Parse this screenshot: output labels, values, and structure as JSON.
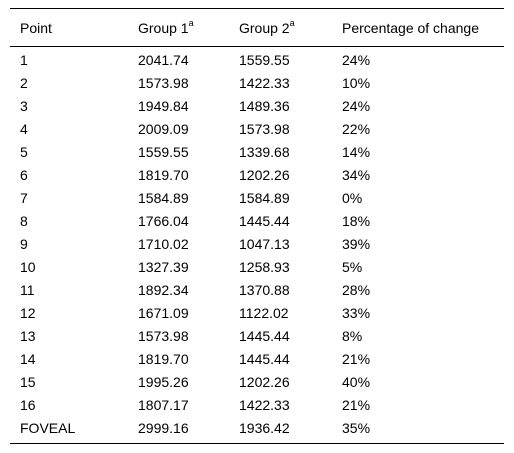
{
  "table": {
    "headers": [
      {
        "text": "Point",
        "sup": ""
      },
      {
        "text": "Group 1",
        "sup": "a"
      },
      {
        "text": "Group 2",
        "sup": "a"
      },
      {
        "text": "Percentage of change",
        "sup": ""
      }
    ],
    "rows": [
      [
        "1",
        "2041.74",
        "1559.55",
        "24%"
      ],
      [
        "2",
        "1573.98",
        "1422.33",
        "10%"
      ],
      [
        "3",
        "1949.84",
        "1489.36",
        "24%"
      ],
      [
        "4",
        "2009.09",
        "1573.98",
        "22%"
      ],
      [
        "5",
        "1559.55",
        "1339.68",
        "14%"
      ],
      [
        "6",
        "1819.70",
        "1202.26",
        "34%"
      ],
      [
        "7",
        "1584.89",
        "1584.89",
        "0%"
      ],
      [
        "8",
        "1766.04",
        "1445.44",
        "18%"
      ],
      [
        "9",
        "1710.02",
        "1047.13",
        "39%"
      ],
      [
        "10",
        "1327.39",
        "1258.93",
        "5%"
      ],
      [
        "11",
        "1892.34",
        "1370.88",
        "28%"
      ],
      [
        "12",
        "1671.09",
        "1122.02",
        "33%"
      ],
      [
        "13",
        "1573.98",
        "1445.44",
        "8%"
      ],
      [
        "14",
        "1819.70",
        "1445.44",
        "21%"
      ],
      [
        "15",
        "1995.26",
        "1202.26",
        "40%"
      ],
      [
        "16",
        "1807.17",
        "1422.33",
        "21%"
      ],
      [
        "FOVEAL",
        "2999.16",
        "1936.42",
        "35%"
      ]
    ]
  }
}
